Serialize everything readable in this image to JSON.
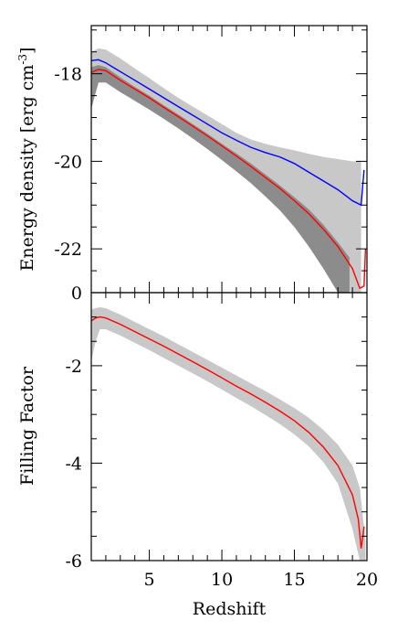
{
  "chart_data": [
    {
      "type": "area",
      "panel": "top",
      "ylabel": "Energy density [erg cm",
      "ylabel_sup": "-3",
      "ylabel_close": "]",
      "xlim": [
        1,
        20
      ],
      "ylim": [
        -23,
        -16.9
      ],
      "yticks": [
        -18,
        -20,
        -22
      ],
      "ytick_labels": [
        "-18",
        "-20",
        "-22"
      ],
      "bottom_label": "0",
      "grid": false,
      "series": [
        {
          "color": "#0000ff",
          "x": [
            1,
            1.5,
            2,
            3,
            4,
            5,
            6,
            7,
            8,
            9,
            10,
            11,
            12,
            13,
            14,
            15,
            16,
            17,
            18,
            19,
            19.6,
            19.8
          ],
          "values": [
            -17.7,
            -17.68,
            -17.75,
            -17.95,
            -18.15,
            -18.35,
            -18.55,
            -18.75,
            -18.95,
            -19.15,
            -19.35,
            -19.52,
            -19.68,
            -19.8,
            -19.9,
            -20.05,
            -20.25,
            -20.45,
            -20.65,
            -20.9,
            -21.0,
            -20.2
          ]
        },
        {
          "color": "#ff0000",
          "x": [
            1,
            1.5,
            2,
            3,
            4,
            5,
            6,
            7,
            8,
            9,
            10,
            11,
            12,
            13,
            14,
            15,
            16,
            17,
            18,
            19,
            19.5,
            19.8,
            19.9
          ],
          "values": [
            -17.97,
            -17.9,
            -17.93,
            -18.15,
            -18.35,
            -18.55,
            -18.77,
            -18.98,
            -19.2,
            -19.42,
            -19.65,
            -19.88,
            -20.12,
            -20.37,
            -20.62,
            -20.9,
            -21.2,
            -21.55,
            -21.95,
            -22.45,
            -22.9,
            -22.85,
            -22.0
          ]
        }
      ],
      "bands": [
        {
          "color": "#c8c8c8",
          "x": [
            1,
            1.5,
            2,
            3,
            4,
            5,
            6,
            7,
            8,
            9,
            10,
            11,
            12,
            13,
            14,
            15,
            16,
            17,
            18,
            19,
            19.6
          ],
          "upper": [
            -17.5,
            -17.42,
            -17.45,
            -17.65,
            -17.88,
            -18.1,
            -18.33,
            -18.55,
            -18.75,
            -18.95,
            -19.15,
            -19.35,
            -19.5,
            -19.6,
            -19.68,
            -19.75,
            -19.83,
            -19.9,
            -19.95,
            -20.0,
            -20.0
          ],
          "lower": [
            -18.8,
            -18.15,
            -18.15,
            -18.4,
            -18.6,
            -18.8,
            -19.0,
            -19.2,
            -19.42,
            -19.65,
            -19.88,
            -20.12,
            -20.38,
            -20.65,
            -20.95,
            -21.3,
            -21.7,
            -22.2,
            -22.8,
            -23.0,
            -23.0
          ]
        },
        {
          "color": "#8c8c8c",
          "x": [
            1,
            1.5,
            2,
            3,
            4,
            5,
            6,
            7,
            8,
            9,
            10,
            11,
            12,
            13,
            14,
            15,
            16,
            17,
            18,
            18.8
          ],
          "upper": [
            -17.85,
            -17.8,
            -17.85,
            -18.08,
            -18.3,
            -18.5,
            -18.72,
            -18.93,
            -19.15,
            -19.37,
            -19.6,
            -19.82,
            -20.05,
            -20.3,
            -20.55,
            -20.82,
            -21.1,
            -21.45,
            -21.85,
            -22.2
          ],
          "lower": [
            -18.8,
            -18.2,
            -18.2,
            -18.42,
            -18.62,
            -18.82,
            -19.03,
            -19.25,
            -19.48,
            -19.72,
            -19.97,
            -20.23,
            -20.5,
            -20.8,
            -21.12,
            -21.5,
            -21.95,
            -22.45,
            -23.0,
            -23.0
          ]
        }
      ]
    },
    {
      "type": "area",
      "panel": "bottom",
      "ylabel": "Filling Factor",
      "xlabel": "Redshift",
      "xlim": [
        1,
        20
      ],
      "ylim": [
        -6,
        -0.5
      ],
      "xticks": [
        5,
        10,
        15,
        20
      ],
      "xtick_labels": [
        "5",
        "10",
        "15",
        "20"
      ],
      "yticks": [
        -2,
        -4,
        -6
      ],
      "ytick_labels": [
        "-2",
        "-4",
        "-6"
      ],
      "grid": false,
      "series": [
        {
          "color": "#ff0000",
          "x": [
            1,
            1.3,
            1.6,
            2,
            3,
            4,
            5,
            6,
            7,
            8,
            9,
            10,
            11,
            12,
            13,
            14,
            15,
            16,
            17,
            18,
            19,
            19.4,
            19.6,
            19.7,
            19.8
          ],
          "values": [
            -1.08,
            -1.02,
            -1.0,
            -1.02,
            -1.15,
            -1.3,
            -1.45,
            -1.6,
            -1.76,
            -1.92,
            -2.08,
            -2.25,
            -2.42,
            -2.58,
            -2.75,
            -2.93,
            -3.13,
            -3.37,
            -3.67,
            -4.05,
            -4.65,
            -5.15,
            -5.75,
            -5.55,
            -5.3
          ]
        }
      ],
      "bands": [
        {
          "color": "#c8c8c8",
          "x": [
            1,
            1.3,
            1.6,
            2,
            3,
            4,
            5,
            6,
            7,
            8,
            9,
            10,
            11,
            12,
            13,
            14,
            15,
            16,
            17,
            18,
            19,
            19.5,
            19.9
          ],
          "upper": [
            -0.85,
            -0.82,
            -0.8,
            -0.82,
            -0.95,
            -1.1,
            -1.25,
            -1.4,
            -1.56,
            -1.72,
            -1.88,
            -2.04,
            -2.2,
            -2.36,
            -2.52,
            -2.69,
            -2.87,
            -3.07,
            -3.32,
            -3.62,
            -4.05,
            -4.5,
            -5.6
          ],
          "lower": [
            -1.9,
            -1.5,
            -1.25,
            -1.25,
            -1.38,
            -1.53,
            -1.68,
            -1.84,
            -2.0,
            -2.16,
            -2.32,
            -2.49,
            -2.66,
            -2.83,
            -3.01,
            -3.2,
            -3.41,
            -3.66,
            -3.98,
            -4.42,
            -5.35,
            -6.0,
            -6.0
          ]
        }
      ]
    }
  ]
}
